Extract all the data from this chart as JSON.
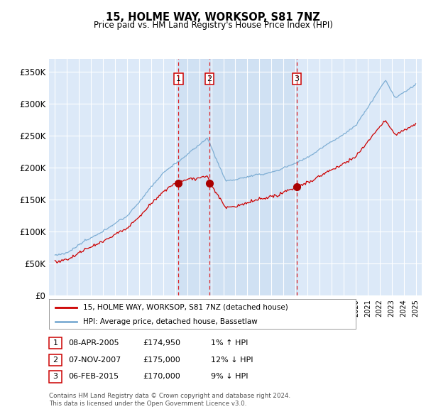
{
  "title": "15, HOLME WAY, WORKSOP, S81 7NZ",
  "subtitle": "Price paid vs. HM Land Registry's House Price Index (HPI)",
  "legend_line1": "15, HOLME WAY, WORKSOP, S81 7NZ (detached house)",
  "legend_line2": "HPI: Average price, detached house, Bassetlaw",
  "footnote1": "Contains HM Land Registry data © Crown copyright and database right 2024.",
  "footnote2": "This data is licensed under the Open Government Licence v3.0.",
  "transactions": [
    {
      "num": "1",
      "date": "08-APR-2005",
      "price": "£174,950",
      "hpi": "1% ↑ HPI",
      "year": 2005.27
    },
    {
      "num": "2",
      "date": "07-NOV-2007",
      "price": "£175,000",
      "hpi": "12% ↓ HPI",
      "year": 2007.85
    },
    {
      "num": "3",
      "date": "06-FEB-2015",
      "price": "£170,000",
      "hpi": "9% ↓ HPI",
      "year": 2015.1
    }
  ],
  "transaction_prices": [
    174950,
    175000,
    170000
  ],
  "plot_bg_color": "#dce9f8",
  "shade_color": "#c8dcf0",
  "grid_color": "#ffffff",
  "line_red": "#cc0000",
  "line_blue": "#7eaed4",
  "marker_red": "#aa0000",
  "ylim": [
    0,
    370000
  ],
  "yticks": [
    0,
    50000,
    100000,
    150000,
    200000,
    250000,
    300000,
    350000
  ],
  "xlim_start": 1994.5,
  "xlim_end": 2025.5
}
